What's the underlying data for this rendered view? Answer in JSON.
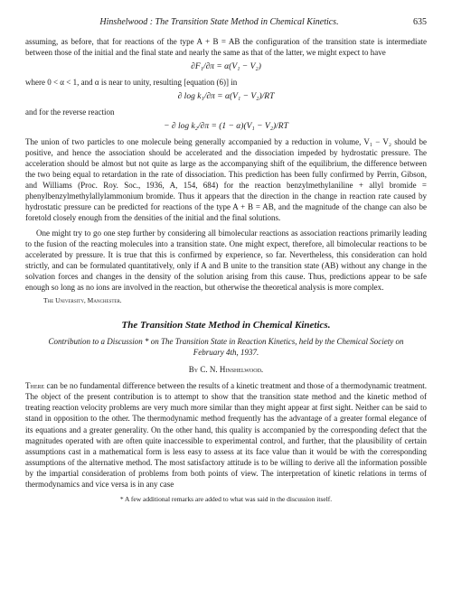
{
  "header": {
    "running_title": "Hinshelwood :  The Transition State Method in Chemical Kinetics.",
    "page_number": "635"
  },
  "upper_article": {
    "intro": "assuming, as before, that for reactions of the type A + B = AB the configuration of the transition state is intermediate between those of the initial and the final state and nearly the same as that of the latter, we might expect to have",
    "formula1": "∂F₁/∂π = α(V₁ − V₂)",
    "note1": "where 0 < α < 1, and α is near to unity, resulting [equation (6)] in",
    "formula2": "∂ log k₁/∂π = α(V₁ − V₂)/RT",
    "note2": "and for the reverse reaction",
    "formula3": "− ∂ log k₂/∂π = (1 − α)(V₁ − V₂)/RT",
    "para1": "The union of two particles to one molecule being generally accompanied by a reduction in volume, V₁ − V₂ should be positive, and hence the association should be accelerated and the dissociation impeded by hydrostatic pressure. The acceleration should be almost but not quite as large as the accompanying shift of the equilibrium, the difference between the two being equal to retardation in the rate of dissociation. This prediction has been fully confirmed by Perrin, Gibson, and Williams (Proc. Roy. Soc., 1936, A, 154, 684) for the reaction benzylmethylaniline + allyl bromide = phenylbenzylmethylallylammonium bromide. Thus it appears that the direction in the change in reaction rate caused by hydrostatic pressure can be predicted for reactions of the type A + B = AB, and the magnitude of the change can also be foretold closely enough from the densities of the initial and the final solutions.",
    "para2": "One might try to go one step further by considering all bimolecular reactions as association reactions primarily leading to the fusion of the reacting molecules into a transition state. One might expect, therefore, all bimolecular reactions to be accelerated by pressure. It is true that this is confirmed by experience, so far. Nevertheless, this consideration can hold strictly, and can be formulated quantitatively, only if A and B unite to the transition state (AB) without any change in the solvation forces and changes in the density of the solution arising from this cause. Thus, predictions appear to be safe enough so long as no ions are involved in the reaction, but otherwise the theoretical analysis is more complex.",
    "affiliation": "The University, Manchester."
  },
  "lower_article": {
    "title": "The Transition State Method in Chemical Kinetics.",
    "subtitle": "Contribution to a Discussion * on The Transition State in Reaction Kinetics, held by the Chemical Society on February 4th, 1937.",
    "author": "By C. N. Hinshelwood.",
    "para1_first": "There",
    "para1_rest": " can be no fundamental difference between the results of a kinetic treatment and those of a thermodynamic treatment. The object of the present contribution is to attempt to show that the transition state method and the kinetic method of treating reaction velocity problems are very much more similar than they might appear at first sight. Neither can be said to stand in opposition to the other. The thermodynamic method frequently has the advantage of a greater formal elegance of its equations and a greater generality. On the other hand, this quality is accompanied by the corresponding defect that the magnitudes operated with are often quite inaccessible to experimental control, and further, that the plausibility of certain assumptions cast in a mathematical form is less easy to assess at its face value than it would be with the corresponding assumptions of the alternative method. The most satisfactory attitude is to be willing to derive all the information possible by the impartial consideration of problems from both points of view. The interpretation of kinetic relations in terms of thermodynamics and vice versa is in any case",
    "footnote": "* A few additional remarks are added to what was said in the discussion itself."
  },
  "styles": {
    "text_color": "#1a1a1a",
    "background_color": "#ffffff",
    "body_fontsize": 9,
    "header_fontsize": 10,
    "title_fontsize": 11,
    "footnote_fontsize": 7.5
  }
}
